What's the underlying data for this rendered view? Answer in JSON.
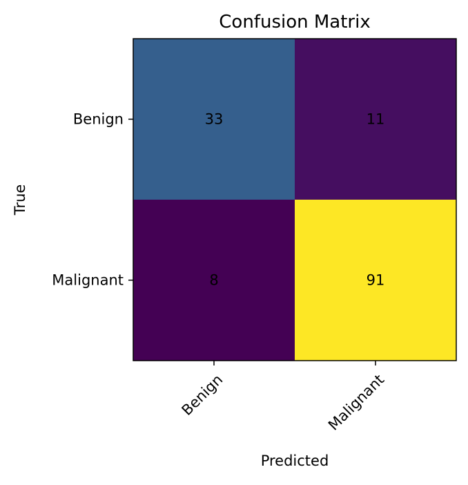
{
  "chart_data": {
    "type": "heatmap",
    "title": "Confusion Matrix",
    "xlabel": "Predicted",
    "ylabel": "True",
    "x_categories": [
      "Benign",
      "Malignant"
    ],
    "y_categories": [
      "Benign",
      "Malignant"
    ],
    "values": [
      [
        33,
        11
      ],
      [
        8,
        91
      ]
    ],
    "colormap": "viridis",
    "grid": false
  }
}
